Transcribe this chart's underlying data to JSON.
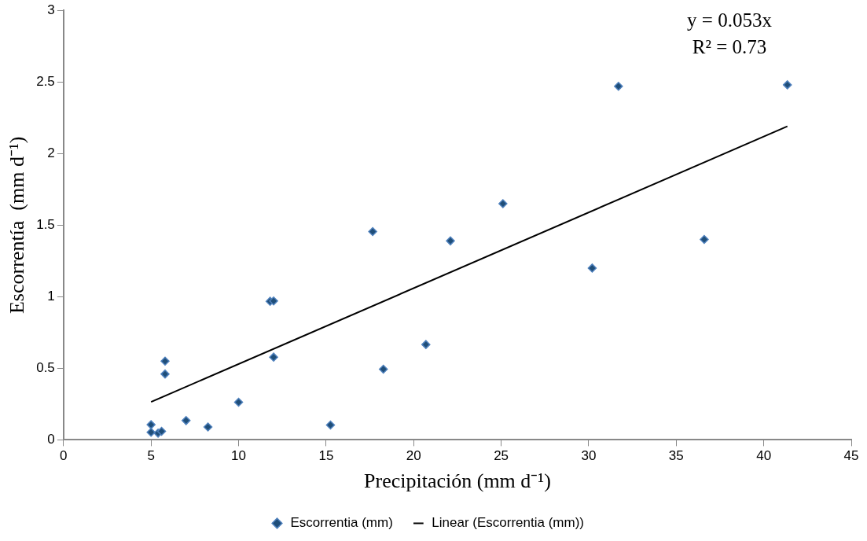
{
  "chart_data": {
    "type": "scatter",
    "xlabel": "Precipitación (mm d⁻¹)",
    "ylabel": "Escorrentía  (mm d⁻¹)",
    "xlim": [
      0,
      45
    ],
    "xticks": [
      0,
      5,
      10,
      15,
      20,
      25,
      30,
      35,
      40,
      45
    ],
    "ylim": [
      0,
      3
    ],
    "yticks": [
      0,
      0.5,
      1,
      1.5,
      2,
      2.5,
      3
    ],
    "grid": false,
    "legend": "bottom",
    "annotations": [
      "y = 0.053x",
      "R² = 0.73"
    ],
    "series": [
      {
        "name": "Escorrentia (mm)",
        "type": "scatter",
        "marker": "diamond",
        "color": "#1f4e79",
        "x": [
          5.0,
          5.0,
          5.4,
          5.6,
          5.8,
          5.8,
          7.0,
          8.25,
          10.0,
          11.8,
          12.0,
          12.0,
          15.25,
          17.66,
          18.27,
          20.7,
          22.1,
          25.1,
          30.2,
          31.7,
          36.6,
          41.35
        ],
        "values": [
          0.106,
          0.053,
          0.047,
          0.06,
          0.55,
          0.46,
          0.135,
          0.09,
          0.263,
          0.968,
          0.97,
          0.578,
          0.104,
          1.455,
          0.494,
          0.666,
          1.39,
          1.65,
          1.2,
          2.47,
          1.4,
          2.48
        ]
      },
      {
        "name": "Linear (Escorrentia (mm))",
        "type": "line",
        "marker": "none",
        "line_style": "solid",
        "color": "#000000",
        "x": [
          5.0,
          41.35
        ],
        "values": [
          0.265,
          2.19
        ]
      }
    ]
  }
}
